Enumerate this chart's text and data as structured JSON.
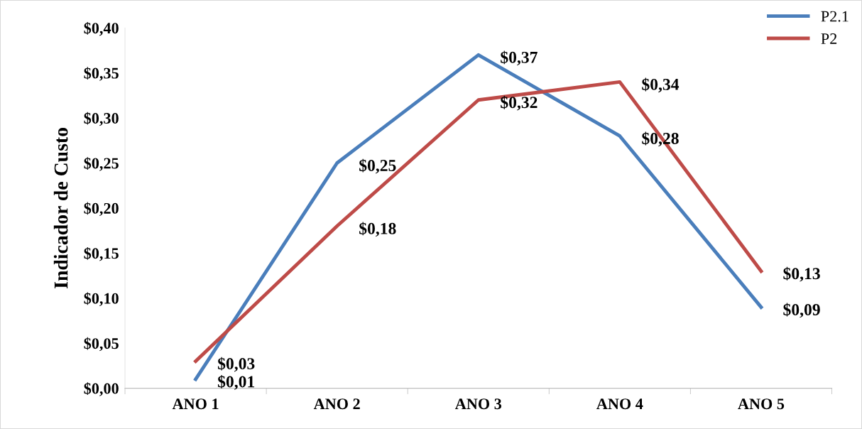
{
  "chart_data": {
    "type": "line",
    "ylabel": "Indicador de Custo",
    "categories": [
      "ANO 1",
      "ANO 2",
      "ANO 3",
      "ANO 4",
      "ANO 5"
    ],
    "series": [
      {
        "name": "P2.1",
        "color": "#4a7ebb",
        "values": [
          0.01,
          0.25,
          0.37,
          0.28,
          0.09
        ],
        "value_labels": [
          "$0,01",
          "$0,25",
          "$0,37",
          "$0,28",
          "$0,09"
        ]
      },
      {
        "name": "P2",
        "color": "#be4b48",
        "values": [
          0.03,
          0.18,
          0.32,
          0.34,
          0.13
        ],
        "value_labels": [
          "$0,03",
          "$0,18",
          "$0,32",
          "$0,34",
          "$0,13"
        ]
      }
    ],
    "ylim": [
      0,
      0.4
    ],
    "yticks": [
      {
        "value": 0,
        "label": "$0,00"
      },
      {
        "value": 0.05,
        "label": "$0,05"
      },
      {
        "value": 0.1,
        "label": "$0,10"
      },
      {
        "value": 0.15,
        "label": "$0,15"
      },
      {
        "value": 0.2,
        "label": "$0,20"
      },
      {
        "value": 0.25,
        "label": "$0,25"
      },
      {
        "value": 0.3,
        "label": "$0,30"
      },
      {
        "value": 0.35,
        "label": "$0,35"
      },
      {
        "value": 0.4,
        "label": "$0,40"
      }
    ],
    "grid": false,
    "legend": "top right",
    "marker": "none",
    "line_style": "solid"
  }
}
